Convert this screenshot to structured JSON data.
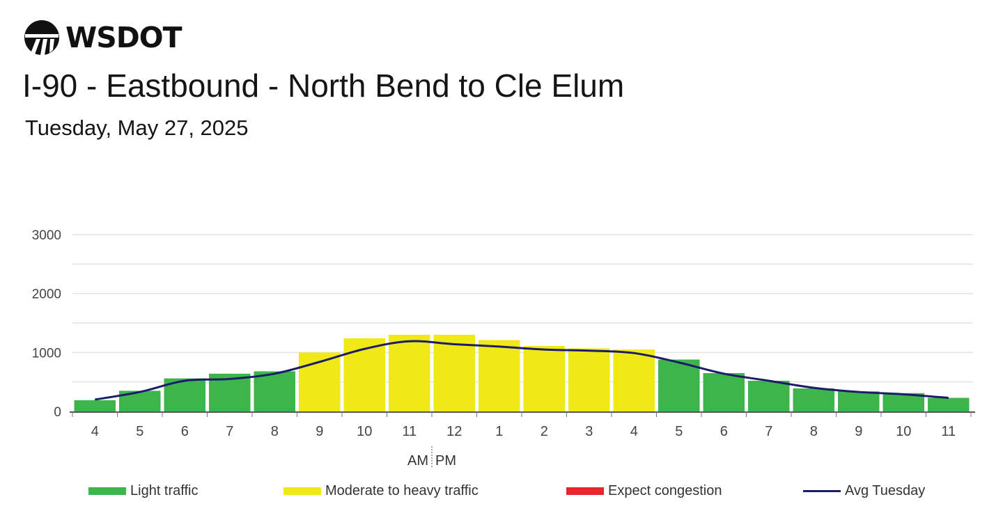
{
  "header": {
    "logo_text": "WSDOT",
    "title": "I-90 - Eastbound - North Bend to Cle Elum",
    "subtitle": "Tuesday, May 27, 2025"
  },
  "colors": {
    "light": "#3db54a",
    "moderate": "#f1e916",
    "congestion": "#e8262d",
    "avg_line": "#1c1b6b",
    "grid": "#e3e3e3",
    "axis_text": "#444444"
  },
  "chart_data": {
    "type": "bar",
    "categories": [
      "4",
      "5",
      "6",
      "7",
      "8",
      "9",
      "10",
      "11",
      "12",
      "1",
      "2",
      "3",
      "4",
      "5",
      "6",
      "7",
      "8",
      "9",
      "10",
      "11"
    ],
    "am_pm_label": {
      "am": "AM",
      "pm": "PM"
    },
    "values": [
      190,
      350,
      560,
      640,
      680,
      1000,
      1240,
      1300,
      1300,
      1210,
      1110,
      1070,
      1050,
      880,
      650,
      520,
      390,
      340,
      310,
      230
    ],
    "levels": [
      "light",
      "light",
      "light",
      "light",
      "light",
      "moderate",
      "moderate",
      "moderate",
      "moderate",
      "moderate",
      "moderate",
      "moderate",
      "moderate",
      "light",
      "light",
      "light",
      "light",
      "light",
      "light",
      "light"
    ],
    "series": [
      {
        "name": "Avg Tuesday",
        "type": "line",
        "values": [
          200,
          330,
          520,
          550,
          640,
          840,
          1060,
          1190,
          1140,
          1100,
          1050,
          1030,
          990,
          830,
          640,
          520,
          400,
          330,
          290,
          230
        ]
      }
    ],
    "ylim": [
      0,
      3000
    ],
    "yticks": [
      0,
      1000,
      2000,
      3000
    ],
    "grid": true,
    "legend": [
      {
        "key": "light",
        "label": "Light traffic"
      },
      {
        "key": "moderate",
        "label": "Moderate to heavy traffic"
      },
      {
        "key": "congestion",
        "label": "Expect congestion"
      },
      {
        "key": "avg",
        "label": "Avg Tuesday"
      }
    ],
    "legend_position": "bottom"
  }
}
